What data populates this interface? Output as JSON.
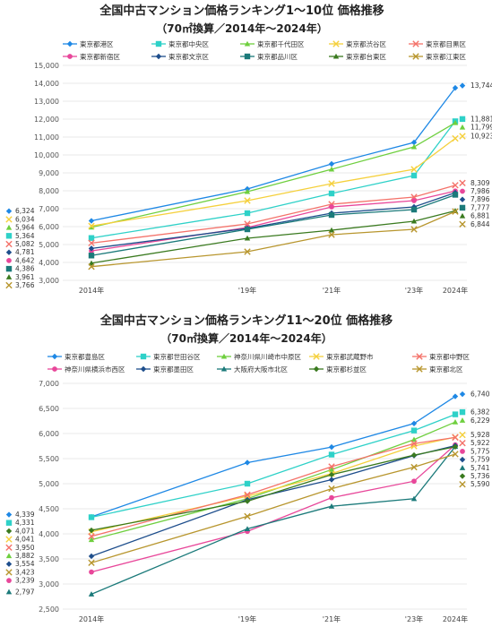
{
  "chart_data": [
    {
      "type": "line",
      "title": "全国中古マンション価格ランキング1～10位 価格推移",
      "subtitle": "（70㎡換算／2014年～2024年）",
      "x": [
        2014,
        2019,
        2021,
        2023,
        2024
      ],
      "x_tick_labels": [
        "2014年",
        "'19年",
        "'21年",
        "'23年",
        "2024年"
      ],
      "ylim": [
        3000,
        15000
      ],
      "y_ticks": [
        3000,
        4000,
        5000,
        6000,
        7000,
        8000,
        9000,
        10000,
        11000,
        12000,
        13000,
        14000,
        15000
      ],
      "y_tick_labels": [
        "3,000",
        "4,000",
        "5,000",
        "6,000",
        "7,000",
        "8,000",
        "9,000",
        "10,000",
        "11,000",
        "12,000",
        "13,000",
        "14,000",
        "15,000"
      ],
      "legend_position": "top",
      "series": [
        {
          "name": "東京都港区",
          "color": "#1E88E5",
          "marker": "diamond",
          "values": [
            6324,
            8100,
            9500,
            10700,
            13744
          ],
          "start_label": "6,324",
          "end_label": "13,744"
        },
        {
          "name": "東京都中央区",
          "color": "#2ED1C8",
          "marker": "square",
          "values": [
            5364,
            6750,
            7850,
            8850,
            11881
          ],
          "start_label": "5,364",
          "end_label": "11,881"
        },
        {
          "name": "東京都千代田区",
          "color": "#6FCF3F",
          "marker": "triangle",
          "values": [
            5964,
            7950,
            9200,
            10450,
            11799
          ],
          "start_label": "5,964",
          "end_label": "11,799"
        },
        {
          "name": "東京都渋谷区",
          "color": "#F5D03C",
          "marker": "x",
          "values": [
            6034,
            7450,
            8400,
            9200,
            10923
          ],
          "start_label": "6,034",
          "end_label": "10,923"
        },
        {
          "name": "東京都目黒区",
          "color": "#F4726A",
          "marker": "x",
          "values": [
            5082,
            6150,
            7250,
            7650,
            8309
          ],
          "start_label": "5,082",
          "end_label": "8,309"
        },
        {
          "name": "東京都新宿区",
          "color": "#E8479A",
          "marker": "circle",
          "values": [
            4642,
            5950,
            7100,
            7450,
            7986
          ],
          "start_label": "4,642",
          "end_label": "7,986"
        },
        {
          "name": "東京都文京区",
          "color": "#1E4E8C",
          "marker": "diamond",
          "values": [
            4781,
            5900,
            6750,
            7100,
            7896
          ],
          "start_label": "4,781",
          "end_label": "7,896"
        },
        {
          "name": "東京都品川区",
          "color": "#1B7A7A",
          "marker": "square",
          "values": [
            4386,
            5850,
            6650,
            6950,
            7777
          ],
          "start_label": "4,386",
          "end_label": "7,777"
        },
        {
          "name": "東京都台東区",
          "color": "#3A7A1F",
          "marker": "triangle",
          "values": [
            3961,
            5350,
            5800,
            6300,
            6881
          ],
          "start_label": "3,961",
          "end_label": "6,881"
        },
        {
          "name": "東京都江東区",
          "color": "#B8962E",
          "marker": "x",
          "values": [
            3766,
            4600,
            5550,
            5850,
            6844
          ],
          "start_label": "3,766",
          "end_label": "6,844"
        }
      ]
    },
    {
      "type": "line",
      "title": "全国中古マンション価格ランキング11～20位 価格推移",
      "subtitle": "（70㎡換算／2014年～2024年）",
      "x": [
        2014,
        2019,
        2021,
        2023,
        2024
      ],
      "x_tick_labels": [
        "2014年",
        "'19年",
        "'21年",
        "'23年",
        "2024年"
      ],
      "ylim": [
        2500,
        7000
      ],
      "y_ticks": [
        2500,
        3000,
        3500,
        4000,
        4500,
        5000,
        5500,
        6000,
        6500,
        7000
      ],
      "y_tick_labels": [
        "2,500",
        "3,000",
        "3,500",
        "4,000",
        "4,500",
        "5,000",
        "5,500",
        "6,000",
        "6,500",
        "7,000"
      ],
      "legend_position": "top",
      "series": [
        {
          "name": "東京都豊島区",
          "color": "#1E88E5",
          "marker": "diamond",
          "values": [
            4339,
            5420,
            5730,
            6200,
            6740
          ],
          "start_label": "4,339",
          "end_label": "6,740"
        },
        {
          "name": "東京都世田谷区",
          "color": "#2ED1C8",
          "marker": "square",
          "values": [
            4331,
            5000,
            5580,
            6060,
            6382
          ],
          "start_label": "4,331",
          "end_label": "6,382"
        },
        {
          "name": "神奈川県川崎市中原区",
          "color": "#6FCF3F",
          "marker": "triangle",
          "values": [
            3882,
            4700,
            5280,
            5880,
            6229
          ],
          "start_label": "3,882",
          "end_label": "6,229"
        },
        {
          "name": "東京都武蔵野市",
          "color": "#F5D03C",
          "marker": "x",
          "values": [
            4041,
            4750,
            5200,
            5750,
            5928
          ],
          "start_label": "4,041",
          "end_label": "5,928"
        },
        {
          "name": "東京都中野区",
          "color": "#F4726A",
          "marker": "x",
          "values": [
            3950,
            4780,
            5340,
            5800,
            5922
          ],
          "start_label": "3,950",
          "end_label": "5,922"
        },
        {
          "name": "神奈川県横浜市西区",
          "color": "#E8479A",
          "marker": "circle",
          "values": [
            3239,
            4050,
            4720,
            5050,
            5775
          ],
          "start_label": "3,239",
          "end_label": "5,775"
        },
        {
          "name": "東京都墨田区",
          "color": "#1E4E8C",
          "marker": "diamond",
          "values": [
            3554,
            4680,
            5080,
            5560,
            5759
          ],
          "start_label": "3,554",
          "end_label": "5,759"
        },
        {
          "name": "大阪府大阪市北区",
          "color": "#1B7A7A",
          "marker": "triangle",
          "values": [
            2797,
            4100,
            4550,
            4700,
            5741
          ],
          "start_label": "2,797",
          "end_label": "5,741"
        },
        {
          "name": "東京都杉並区",
          "color": "#3A7A1F",
          "marker": "diamond",
          "values": [
            4071,
            4650,
            5180,
            5570,
            5736
          ],
          "start_label": "4,071",
          "end_label": "5,736"
        },
        {
          "name": "東京都北区",
          "color": "#B8962E",
          "marker": "x",
          "values": [
            3423,
            4350,
            4900,
            5330,
            5590
          ],
          "start_label": "3,423",
          "end_label": "5,590"
        }
      ]
    }
  ]
}
